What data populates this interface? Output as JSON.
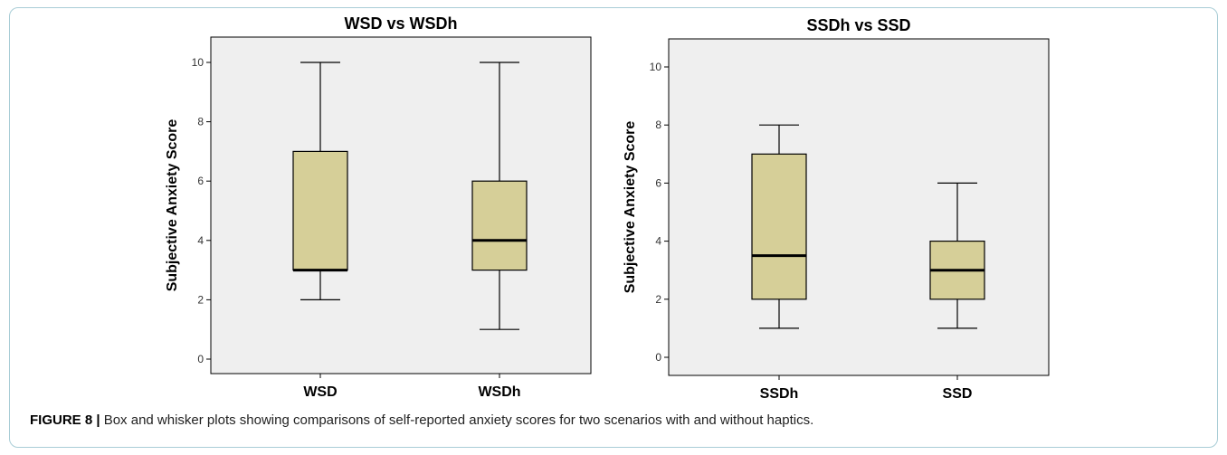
{
  "chart_data": [
    {
      "type": "box",
      "title": "WSD vs WSDh",
      "xlabel": "",
      "ylabel": "Subjective Anxiety Score",
      "ylim": [
        0,
        10
      ],
      "yticks": [
        0,
        2,
        4,
        6,
        8,
        10
      ],
      "grid": false,
      "categories": [
        "WSD",
        "WSDh"
      ],
      "boxes": [
        {
          "label": "WSD",
          "min": 2,
          "q1": 3,
          "median": 3,
          "q3": 7,
          "max": 10
        },
        {
          "label": "WSDh",
          "min": 1,
          "q1": 3,
          "median": 4,
          "q3": 6,
          "max": 10
        }
      ]
    },
    {
      "type": "box",
      "title": "SSDh vs SSD",
      "xlabel": "",
      "ylabel": "Subjective Anxiety Score",
      "ylim": [
        0,
        10
      ],
      "yticks": [
        0,
        2,
        4,
        6,
        8,
        10
      ],
      "grid": false,
      "categories": [
        "SSDh",
        "SSD"
      ],
      "boxes": [
        {
          "label": "SSDh",
          "min": 1,
          "q1": 2,
          "median": 3.5,
          "q3": 7,
          "max": 8
        },
        {
          "label": "SSD",
          "min": 1,
          "q1": 2,
          "median": 3,
          "q3": 4,
          "max": 6
        }
      ]
    }
  ],
  "colors": {
    "box_fill": "#d6cf98",
    "plot_bg": "#efefef",
    "frame": "#a9cdd6"
  },
  "caption": {
    "label": "FIGURE 8 |",
    "text": " Box and whisker plots showing comparisons of self-reported anxiety scores for two scenarios with and without haptics."
  }
}
